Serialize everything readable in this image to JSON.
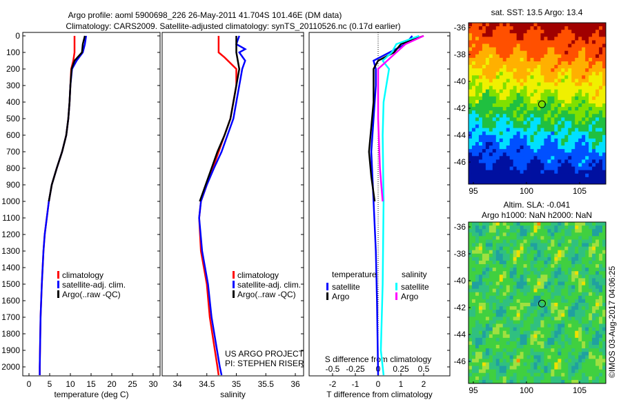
{
  "title_line1": "Argo profile: aoml 5900698_226 26-May-2011 41.704S 101.46E (DM data)",
  "title_line2": "Climatology: CARS2009. Satellite-adjusted climatology: synTS_20110526.nc (0.17d earlier)",
  "colors": {
    "climatology": "#ff0000",
    "satellite": "#0000ff",
    "argo": "#000000",
    "s_satellite": "#00ffff",
    "s_argo": "#ff00ff"
  },
  "chart_data": [
    {
      "type": "line",
      "xlabel": "temperature (deg C)",
      "ylabel": "",
      "xlim": [
        -1,
        31
      ],
      "ylim": [
        2050,
        0
      ],
      "xticks": [
        "0",
        "5",
        "10",
        "15",
        "20",
        "25",
        "30"
      ],
      "xtickvals": [
        0,
        5,
        10,
        15,
        20,
        25,
        30
      ],
      "yticks": [
        "0",
        "100",
        "200",
        "300",
        "400",
        "500",
        "600",
        "700",
        "800",
        "900",
        "1000",
        "1100",
        "1200",
        "1300",
        "1400",
        "1500",
        "1600",
        "1700",
        "1800",
        "1900",
        "2000"
      ],
      "legend": [
        "climatology",
        "satellite-adj. clim.",
        "Argo(..raw -QC)"
      ],
      "series": [
        {
          "name": "climatology",
          "color_key": "climatology",
          "depth": [
            0,
            100,
            150,
            200,
            300,
            400,
            500,
            600,
            700,
            800,
            900,
            1000,
            1100,
            1200,
            1300,
            1500,
            1700,
            2000,
            2050
          ],
          "values": [
            11,
            11,
            10.7,
            10.2,
            10,
            9.8,
            9.5,
            9,
            8,
            6.7,
            5.5,
            4.8,
            4.3,
            3.8,
            3.5,
            3.1,
            2.8,
            2.6,
            2.6
          ]
        },
        {
          "name": "satellite-adj. clim.",
          "color_key": "satellite",
          "depth": [
            0,
            50,
            100,
            150,
            200,
            300,
            400,
            500,
            600,
            700,
            800,
            900,
            1000,
            1100,
            1200,
            1300,
            1500,
            1700,
            2000,
            2050
          ],
          "values": [
            13.8,
            13.5,
            13,
            11.5,
            10.4,
            10,
            9.8,
            9.5,
            9,
            8,
            6.7,
            5.5,
            4.8,
            4.3,
            3.8,
            3.5,
            3.1,
            2.8,
            2.6,
            2.6
          ]
        },
        {
          "name": "Argo(..raw -QC)",
          "color_key": "argo",
          "depth": [
            0,
            50,
            100,
            150,
            200,
            300,
            400,
            500,
            600,
            700,
            800,
            900,
            1000
          ],
          "values": [
            13.5,
            13,
            12.8,
            11,
            10.3,
            10,
            9.8,
            9.5,
            9,
            8,
            6.7,
            5.5,
            4.8
          ]
        }
      ]
    },
    {
      "type": "line",
      "xlabel": "salinity",
      "xlim": [
        33.9,
        36.05
      ],
      "ylim": [
        2050,
        0
      ],
      "xticks": [
        "34",
        "34.5",
        "35",
        "35.5",
        "36"
      ],
      "xtickvals": [
        34,
        34.5,
        35,
        35.5,
        36
      ],
      "legend": [
        "climatology",
        "satellite-adj. clim.",
        "Argo(..raw -QC)"
      ],
      "annotation": [
        "US ARGO PROJECT",
        "PI: STEPHEN RISER"
      ],
      "series": [
        {
          "name": "climatology",
          "color_key": "climatology",
          "depth": [
            0,
            100,
            130,
            200,
            300,
            400,
            500,
            600,
            700,
            800,
            900,
            1000,
            1100,
            1300,
            1500,
            1700,
            2000,
            2050
          ],
          "values": [
            34.7,
            34.7,
            34.8,
            35.0,
            35.0,
            34.95,
            34.9,
            34.8,
            34.7,
            34.6,
            34.5,
            34.4,
            34.37,
            34.4,
            34.5,
            34.55,
            34.68,
            34.7
          ]
        },
        {
          "name": "satellite-adj. clim.",
          "color_key": "satellite",
          "depth": [
            0,
            50,
            80,
            100,
            150,
            200,
            300,
            400,
            500,
            600,
            700,
            800,
            900,
            1000,
            1100,
            1300,
            1500,
            1700,
            2000,
            2050
          ],
          "values": [
            35.05,
            35.0,
            35.15,
            35.05,
            35.15,
            35.1,
            35.05,
            35.0,
            34.95,
            34.85,
            34.75,
            34.62,
            34.5,
            34.4,
            34.37,
            34.42,
            34.52,
            34.58,
            34.72,
            34.75
          ]
        },
        {
          "name": "Argo(..raw -QC)",
          "color_key": "argo",
          "depth": [
            0,
            100,
            200,
            300,
            400,
            500,
            600,
            700,
            800,
            900,
            1000
          ],
          "values": [
            35.0,
            35.0,
            35.05,
            35.0,
            34.95,
            34.9,
            34.8,
            34.68,
            34.58,
            34.48,
            34.38
          ]
        }
      ]
    },
    {
      "type": "line",
      "xlabel": "T difference from climatology",
      "x2label": "S difference from climatology",
      "xlim": [
        -3,
        3
      ],
      "ylim": [
        2050,
        0
      ],
      "xticks": [
        "-2",
        "-1",
        "0",
        "1",
        "2"
      ],
      "xtickvals": [
        -2,
        -1,
        0,
        1,
        2
      ],
      "x2ticks": [
        "-0.5",
        "-0.25",
        "0",
        "0.25",
        "0.5"
      ],
      "x2tickvals": [
        -0.5,
        -0.25,
        0,
        0.25,
        0.5
      ],
      "legend_headers": [
        "temperature",
        "salinity"
      ],
      "legend": [
        "satellite",
        "Argo",
        "satellite",
        "Argo"
      ],
      "series": [
        {
          "name": "T satellite",
          "color_key": "satellite",
          "unit": "T",
          "depth": [
            0,
            50,
            100,
            150,
            200,
            300,
            500,
            700,
            1000,
            1300,
            1600,
            2050
          ],
          "values": [
            1.5,
            1.2,
            0.5,
            -0.2,
            -0.1,
            -0.1,
            -0.2,
            -0.3,
            -0.2,
            -0.1,
            -0.05,
            0
          ]
        },
        {
          "name": "T Argo",
          "color_key": "argo",
          "unit": "T",
          "depth": [
            0,
            50,
            100,
            150,
            200,
            400,
            700,
            850,
            1000
          ],
          "values": [
            2,
            1,
            0.7,
            0,
            -0.2,
            -0.2,
            -0.4,
            -0.3,
            -0.15
          ]
        },
        {
          "name": "S satellite",
          "color_key": "s_satellite",
          "unit": "S",
          "depth": [
            0,
            50,
            100,
            150,
            200,
            400,
            600,
            1000,
            1500,
            1900,
            2050
          ],
          "values": [
            0.45,
            0.2,
            0.15,
            0.05,
            0.12,
            0.06,
            0.05,
            0.06,
            0.05,
            0.03,
            0.06
          ]
        },
        {
          "name": "S Argo",
          "color_key": "s_argo",
          "unit": "S",
          "depth": [
            0,
            50,
            100,
            200,
            500,
            800,
            1000
          ],
          "values": [
            0.5,
            0.3,
            0.2,
            0.0,
            0.0,
            0.02,
            0.05
          ]
        }
      ]
    },
    {
      "type": "heatmap",
      "title": "sat. SST: 13.5 Argo: 13.4",
      "xticks": [
        "95",
        "100",
        "105"
      ],
      "yticks": [
        "-36",
        "-38",
        "-40",
        "-42",
        "-44",
        "-46"
      ],
      "marker": {
        "lon": 101.46,
        "lat": -41.7
      }
    },
    {
      "type": "heatmap",
      "title": "Altim. SLA: -0.041",
      "subtitle": "Argo h1000: NaN h2000: NaN",
      "xticks": [
        "95",
        "100",
        "105"
      ],
      "yticks": [
        "-36",
        "-38",
        "-40",
        "-42",
        "-44",
        "-46"
      ],
      "marker": {
        "lon": 101.46,
        "lat": -41.7
      }
    }
  ],
  "credit": "©IMOS 03-Aug-2017 04:06:25"
}
